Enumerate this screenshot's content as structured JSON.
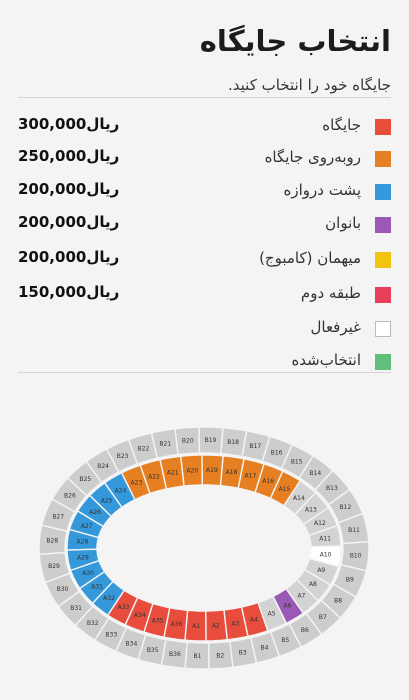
{
  "header": {
    "title": "انتخاب جایگاه",
    "subtitle": "جایگاه خود را انتخاب کنید."
  },
  "legend": [
    {
      "key": "vip",
      "label": "جایگاه",
      "price": "300,000ریال",
      "color": "#e74c3c"
    },
    {
      "key": "opposite",
      "label": "روبه‌روی جایگاه",
      "price": "250,000ریال",
      "color": "#e67e22"
    },
    {
      "key": "behind_goal",
      "label": "پشت دروازه",
      "price": "200,000ریال",
      "color": "#3498db"
    },
    {
      "key": "women",
      "label": "بانوان",
      "price": "200,000ریال",
      "color": "#9b59b6"
    },
    {
      "key": "guest",
      "label": "میهمان (کامبوج)",
      "price": "200,000ریال",
      "color": "#f1c40f"
    },
    {
      "key": "upper",
      "label": "طبقه دوم",
      "price": "150,000ریال",
      "color": "#e8405a"
    },
    {
      "key": "disabled",
      "label": "غیرفعال",
      "price": "",
      "color": "#ffffff"
    },
    {
      "key": "selected",
      "label": "انتخاب‌شده",
      "price": "",
      "color": "#5fbf7b"
    }
  ],
  "colors": {
    "inner_inactive": "#d3d3d3",
    "outer": "#cdcdcd",
    "available": "#ffffff"
  },
  "stadium": {
    "inner_sections": [
      {
        "name": "A1",
        "type": "vip"
      },
      {
        "name": "A2",
        "type": "vip"
      },
      {
        "name": "A3",
        "type": "vip"
      },
      {
        "name": "A4",
        "type": "vip"
      },
      {
        "name": "A5",
        "type": "inactive"
      },
      {
        "name": "A6",
        "type": "women"
      },
      {
        "name": "A7",
        "type": "inactive"
      },
      {
        "name": "A8",
        "type": "inactive"
      },
      {
        "name": "A9",
        "type": "inactive"
      },
      {
        "name": "A10",
        "type": "available"
      },
      {
        "name": "A11",
        "type": "inactive"
      },
      {
        "name": "A12",
        "type": "inactive"
      },
      {
        "name": "A13",
        "type": "inactive"
      },
      {
        "name": "A14",
        "type": "inactive"
      },
      {
        "name": "A15",
        "type": "opposite"
      },
      {
        "name": "A16",
        "type": "opposite"
      },
      {
        "name": "A17",
        "type": "opposite"
      },
      {
        "name": "A18",
        "type": "opposite"
      },
      {
        "name": "A19",
        "type": "opposite"
      },
      {
        "name": "A20",
        "type": "opposite"
      },
      {
        "name": "A21",
        "type": "opposite"
      },
      {
        "name": "A22",
        "type": "opposite"
      },
      {
        "name": "A23",
        "type": "opposite"
      },
      {
        "name": "A24",
        "type": "behind_goal"
      },
      {
        "name": "A25",
        "type": "behind_goal"
      },
      {
        "name": "A26",
        "type": "behind_goal"
      },
      {
        "name": "A27",
        "type": "behind_goal"
      },
      {
        "name": "A28",
        "type": "behind_goal"
      },
      {
        "name": "A29",
        "type": "behind_goal"
      },
      {
        "name": "A30",
        "type": "behind_goal"
      },
      {
        "name": "A31",
        "type": "behind_goal"
      },
      {
        "name": "A32",
        "type": "behind_goal"
      },
      {
        "name": "A33",
        "type": "vip"
      },
      {
        "name": "A34",
        "type": "vip"
      },
      {
        "name": "A35",
        "type": "vip"
      },
      {
        "name": "A36",
        "type": "vip"
      }
    ],
    "outer_sections": [
      "B1",
      "B2",
      "B3",
      "B4",
      "B5",
      "B6",
      "B7",
      "B8",
      "B9",
      "B10",
      "B11",
      "B12",
      "B13",
      "B14",
      "B15",
      "B16",
      "B17",
      "B18",
      "B19",
      "B20",
      "B21",
      "B22",
      "B23",
      "B24",
      "B25",
      "B26",
      "B27",
      "B28",
      "B29",
      "B30",
      "B31",
      "B32",
      "B33",
      "B34",
      "B35",
      "B36"
    ]
  }
}
